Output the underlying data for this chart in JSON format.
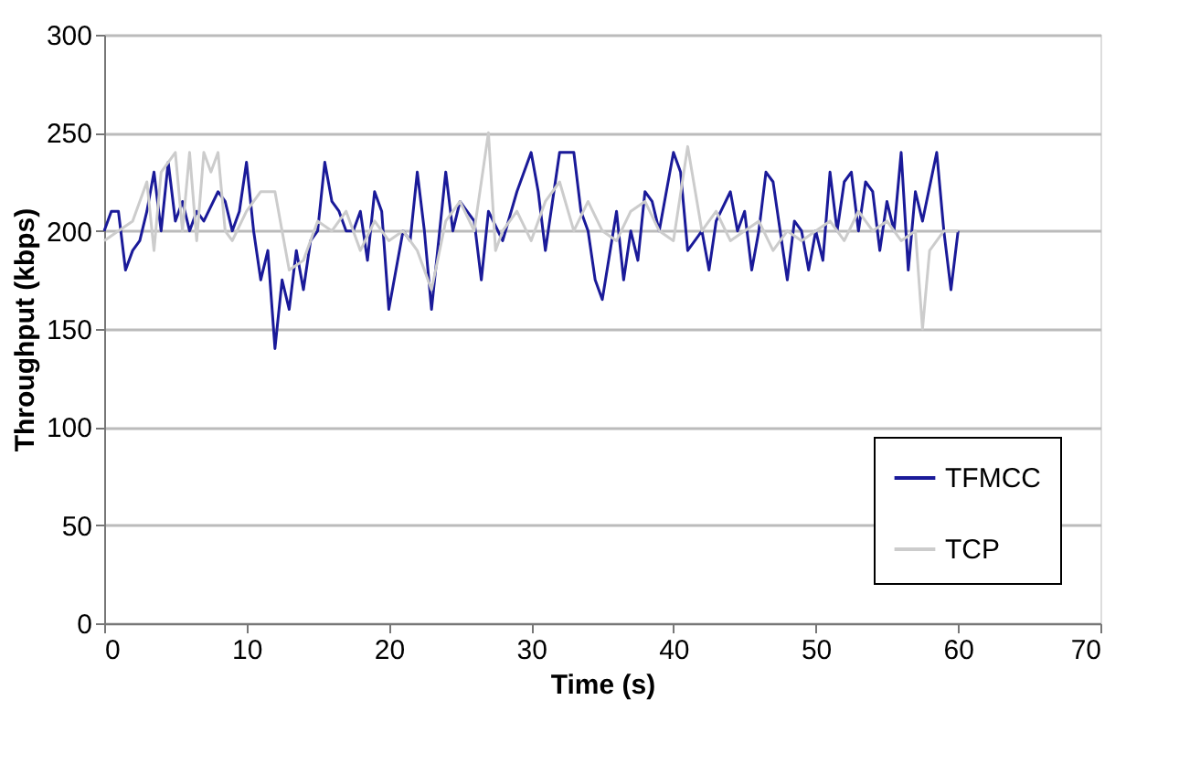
{
  "chart_data": {
    "type": "line",
    "xlabel": "Time (s)",
    "ylabel": "Throughput (kbps)",
    "xlim": [
      0,
      70
    ],
    "xticks": [
      0,
      10,
      20,
      30,
      40,
      50,
      60,
      70
    ],
    "ylim": [
      0,
      300
    ],
    "yticks": [
      0,
      50,
      100,
      150,
      200,
      250,
      300
    ],
    "grid": "y",
    "legend": "bottom right",
    "line_style": "solid",
    "series": [
      {
        "name": "TFMCC",
        "color": "#1a1a99",
        "x": [
          0,
          0.5,
          1,
          1.5,
          2,
          2.5,
          3,
          3.5,
          4,
          4.5,
          5,
          5.5,
          6,
          6.5,
          7,
          8,
          8.5,
          9,
          9.5,
          10,
          10.5,
          11,
          11.5,
          12,
          12.5,
          13,
          13.5,
          14,
          14.5,
          15,
          15.5,
          16,
          16.5,
          17,
          17.5,
          18,
          18.5,
          19,
          19.5,
          20,
          21,
          21.5,
          22,
          22.5,
          23,
          24,
          24.5,
          25,
          26,
          26.5,
          27,
          28,
          29,
          30,
          30.5,
          31,
          32,
          33,
          33.5,
          34,
          34.5,
          35,
          36,
          36.5,
          37,
          37.5,
          38,
          38.5,
          39,
          40,
          40.5,
          41,
          42,
          42.5,
          43,
          44,
          44.5,
          45,
          45.5,
          46,
          46.5,
          47,
          47.5,
          48,
          48.5,
          49,
          49.5,
          50,
          50.5,
          51,
          51.5,
          52,
          52.5,
          53,
          53.5,
          54,
          54.5,
          55,
          55.5,
          56,
          56.5,
          57,
          57.5,
          58.5,
          59,
          59.5,
          60
        ],
        "values": [
          200,
          210,
          210,
          180,
          190,
          195,
          210,
          230,
          200,
          235,
          205,
          215,
          200,
          210,
          205,
          220,
          215,
          200,
          210,
          235,
          200,
          175,
          190,
          140,
          175,
          160,
          190,
          170,
          195,
          200,
          235,
          215,
          210,
          200,
          200,
          210,
          185,
          220,
          210,
          160,
          200,
          195,
          230,
          200,
          160,
          230,
          200,
          215,
          205,
          175,
          210,
          195,
          220,
          240,
          220,
          190,
          240,
          240,
          210,
          200,
          175,
          165,
          210,
          175,
          200,
          185,
          220,
          215,
          200,
          240,
          230,
          190,
          200,
          180,
          205,
          220,
          200,
          210,
          180,
          200,
          230,
          225,
          200,
          175,
          205,
          200,
          180,
          200,
          185,
          230,
          200,
          225,
          230,
          200,
          225,
          220,
          190,
          215,
          200,
          240,
          180,
          220,
          205,
          240,
          200,
          170,
          200
        ]
      },
      {
        "name": "TCP",
        "color": "#cccccc",
        "x": [
          0,
          1,
          2,
          3,
          3.5,
          4,
          5,
          5.5,
          6,
          6.5,
          7,
          7.5,
          8,
          8.5,
          9,
          10,
          11,
          12,
          12.5,
          13,
          14,
          15,
          16,
          17,
          18,
          19,
          20,
          21,
          22,
          23,
          24,
          25,
          26,
          27,
          27.5,
          28,
          29,
          30,
          31,
          32,
          33,
          34,
          35,
          36,
          37,
          38,
          39,
          40,
          41,
          42,
          43,
          44,
          45,
          46,
          47,
          48,
          49,
          50,
          51,
          52,
          53,
          54,
          55,
          56,
          57,
          57.5,
          58,
          59,
          60
        ],
        "values": [
          195,
          200,
          205,
          225,
          190,
          230,
          240,
          200,
          240,
          195,
          240,
          230,
          240,
          200,
          195,
          210,
          220,
          220,
          200,
          180,
          185,
          205,
          200,
          210,
          190,
          205,
          195,
          200,
          190,
          170,
          205,
          215,
          200,
          250,
          190,
          200,
          210,
          195,
          215,
          225,
          200,
          215,
          200,
          195,
          210,
          215,
          200,
          195,
          243,
          200,
          210,
          195,
          200,
          205,
          190,
          200,
          195,
          200,
          205,
          195,
          210,
          200,
          205,
          195,
          200,
          150,
          190,
          200,
          200
        ]
      }
    ]
  }
}
